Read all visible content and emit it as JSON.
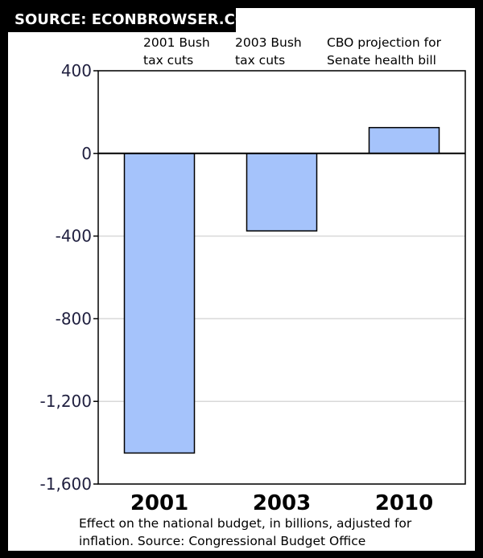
{
  "source_banner": "SOURCE: ECONBROWSER.COM",
  "annotations": [
    [
      "2001 Bush",
      "tax cuts"
    ],
    [
      "2003 Bush",
      "tax cuts"
    ],
    [
      "CBO projection for",
      "Senate health bill"
    ]
  ],
  "caption_line1": "Effect on the national budget, in billions, adjusted for",
  "caption_line2": "inflation. Source: Congressional Budget Office",
  "colors": {
    "bar_fill": "#a5c3fb",
    "bar_stroke": "#000000",
    "gridline": "#d9d9d9",
    "axis_label": "#1f1f3f"
  },
  "chart_data": {
    "type": "bar",
    "categories": [
      "2001",
      "2003",
      "2010"
    ],
    "values": [
      -1450,
      -375,
      125
    ],
    "ylim": [
      -1600,
      400
    ],
    "yticks": [
      400,
      0,
      -400,
      -800,
      -1200,
      -1600
    ],
    "ytick_labels": [
      "400",
      "0",
      "-400",
      "-800",
      "-1,200",
      "-1,600"
    ],
    "grid": true
  }
}
